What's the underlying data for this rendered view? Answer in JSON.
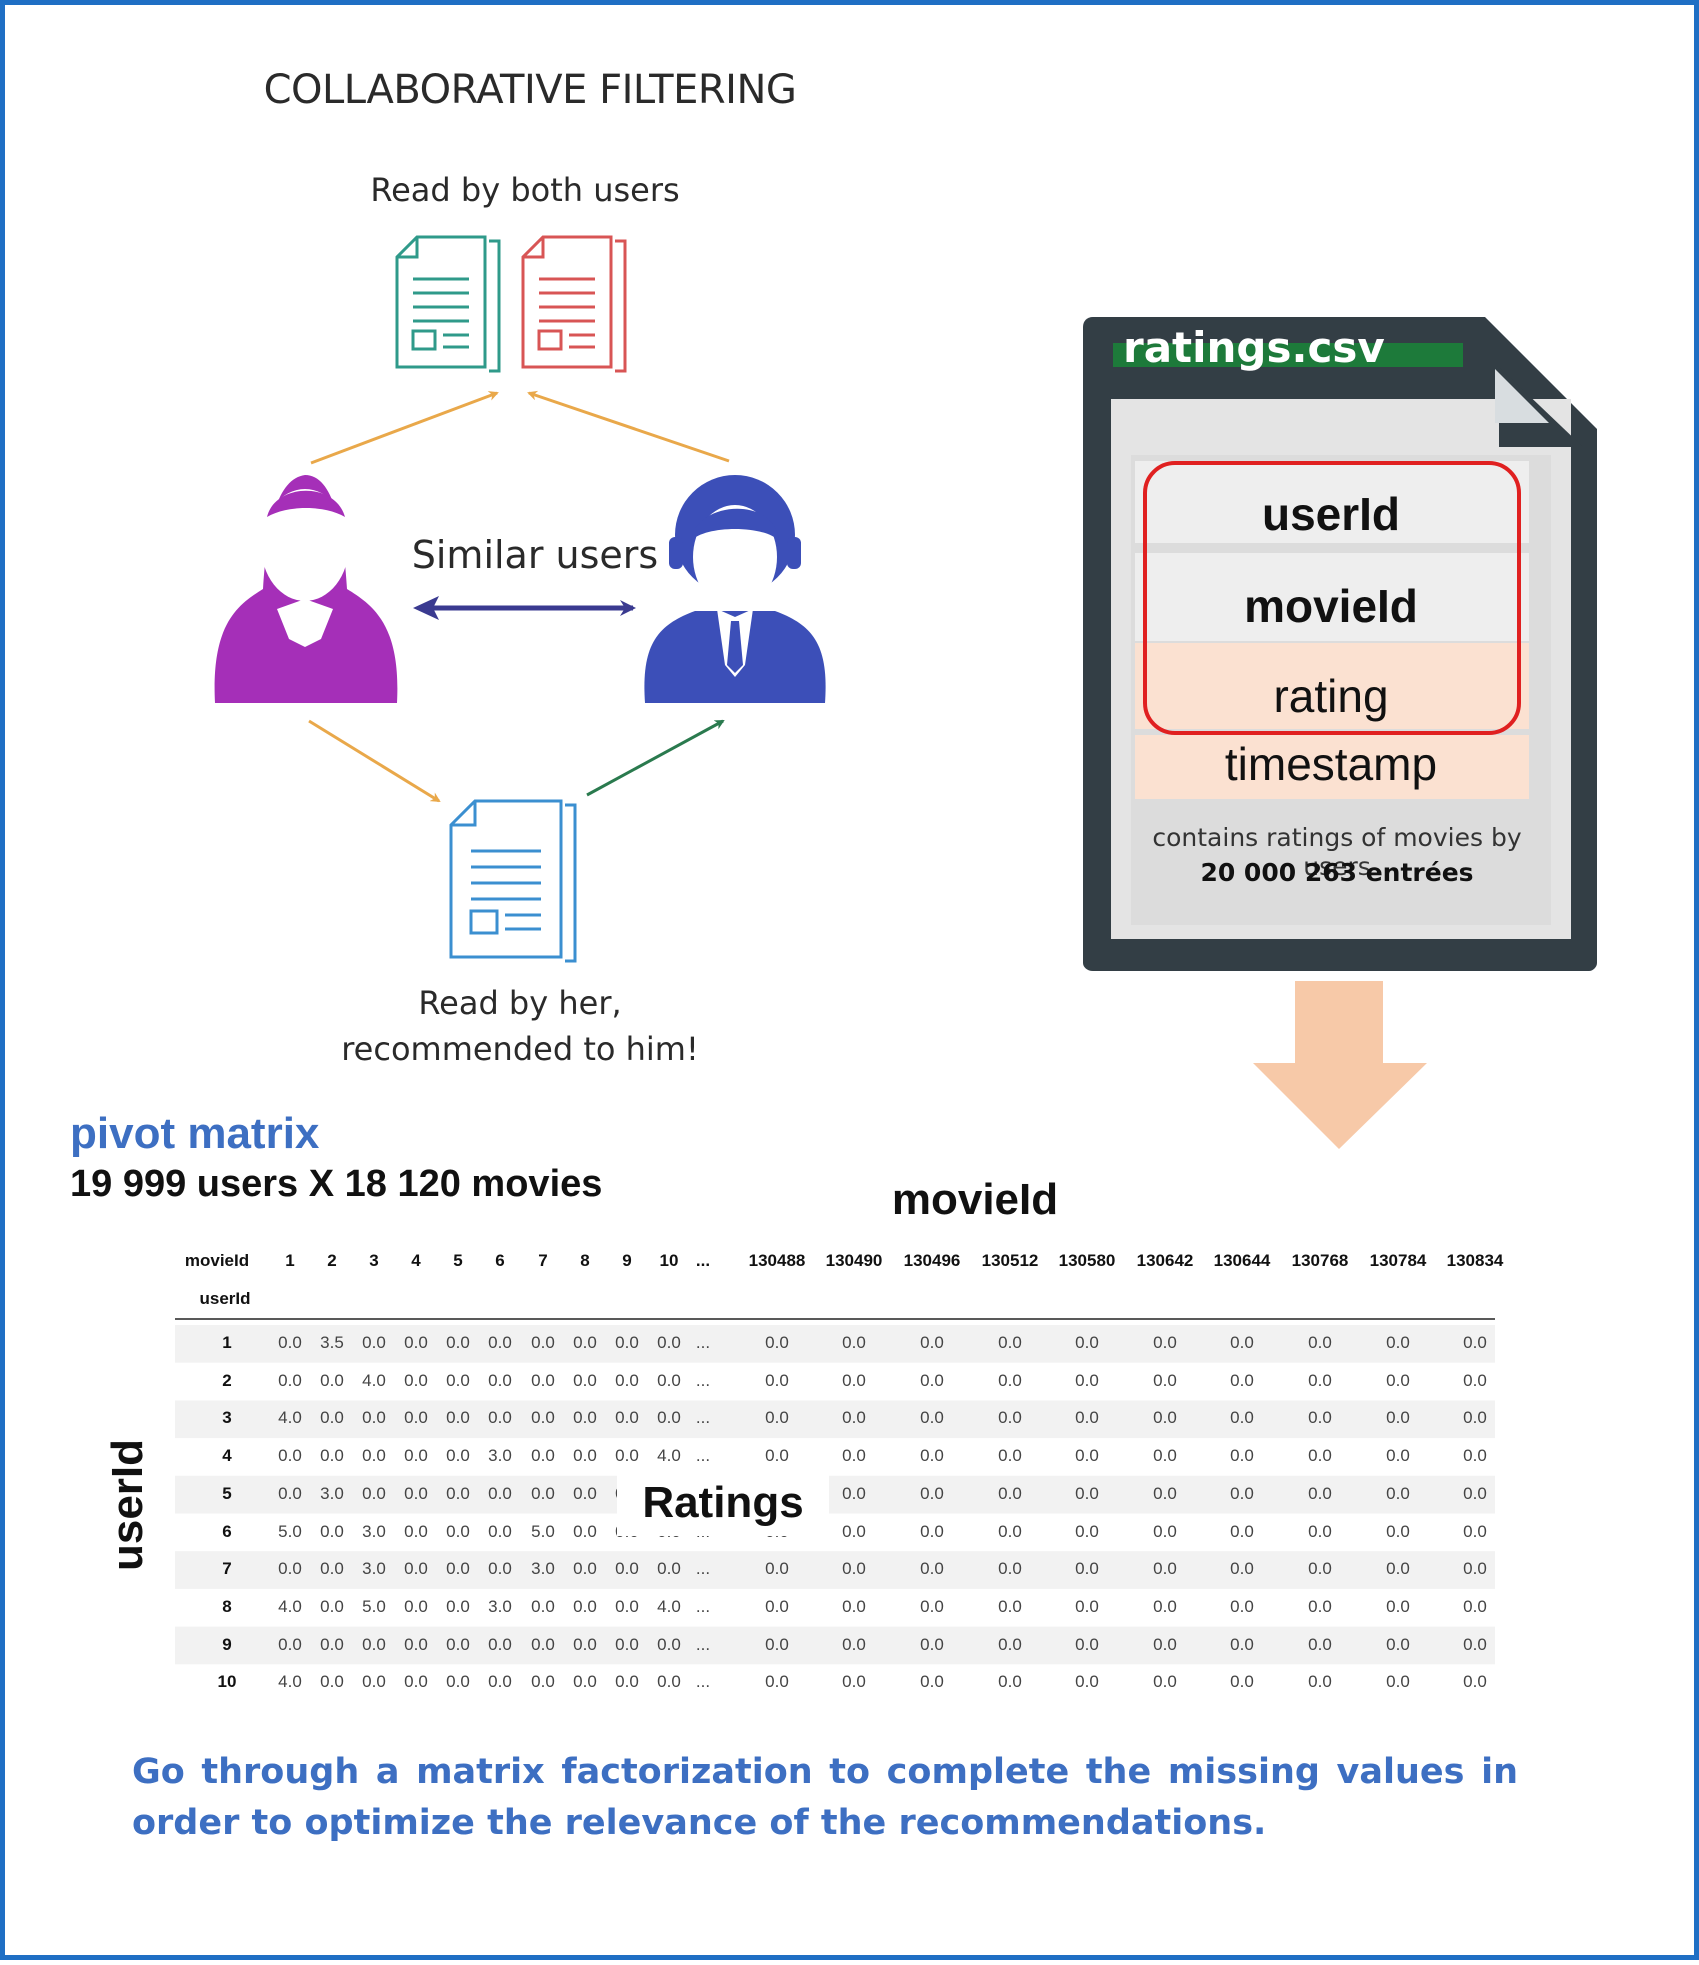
{
  "diagram": {
    "title": "COLLABORATIVE FILTERING",
    "read_by_both": "Read by both users",
    "similar_users": "Similar users",
    "read_by_her_line1": "Read by her,",
    "read_by_her_line2": "recommended to him!"
  },
  "file": {
    "name": "ratings.csv",
    "fields": [
      "userId",
      "movieId",
      "rating",
      "timestamp"
    ],
    "description": "contains ratings of movies by users",
    "count": "20 000 263 entrées"
  },
  "pivot": {
    "title": "pivot matrix",
    "dimensions": "19 999 users X 18 120 movies",
    "column_axis_label": "movieId",
    "row_axis_label": "userId",
    "overlay_label": "Ratings",
    "header_row_label": "movieId",
    "index_label": "userId",
    "columns": [
      "1",
      "2",
      "3",
      "4",
      "5",
      "6",
      "7",
      "8",
      "9",
      "10",
      "...",
      "130488",
      "130490",
      "130496",
      "130512",
      "130580",
      "130642",
      "130644",
      "130768",
      "130784",
      "130834"
    ],
    "rows": [
      {
        "id": "1",
        "values": [
          "0.0",
          "3.5",
          "0.0",
          "0.0",
          "0.0",
          "0.0",
          "0.0",
          "0.0",
          "0.0",
          "0.0",
          "...",
          "0.0",
          "0.0",
          "0.0",
          "0.0",
          "0.0",
          "0.0",
          "0.0",
          "0.0",
          "0.0",
          "0.0"
        ]
      },
      {
        "id": "2",
        "values": [
          "0.0",
          "0.0",
          "4.0",
          "0.0",
          "0.0",
          "0.0",
          "0.0",
          "0.0",
          "0.0",
          "0.0",
          "...",
          "0.0",
          "0.0",
          "0.0",
          "0.0",
          "0.0",
          "0.0",
          "0.0",
          "0.0",
          "0.0",
          "0.0"
        ]
      },
      {
        "id": "3",
        "values": [
          "4.0",
          "0.0",
          "0.0",
          "0.0",
          "0.0",
          "0.0",
          "0.0",
          "0.0",
          "0.0",
          "0.0",
          "...",
          "0.0",
          "0.0",
          "0.0",
          "0.0",
          "0.0",
          "0.0",
          "0.0",
          "0.0",
          "0.0",
          "0.0"
        ]
      },
      {
        "id": "4",
        "values": [
          "0.0",
          "0.0",
          "0.0",
          "0.0",
          "0.0",
          "3.0",
          "0.0",
          "0.0",
          "0.0",
          "4.0",
          "...",
          "0.0",
          "0.0",
          "0.0",
          "0.0",
          "0.0",
          "0.0",
          "0.0",
          "0.0",
          "0.0",
          "0.0"
        ]
      },
      {
        "id": "5",
        "values": [
          "0.0",
          "3.0",
          "0.0",
          "0.0",
          "0.0",
          "0.0",
          "0.0",
          "0.0",
          "0.0",
          "0.0",
          "...",
          "0.0",
          "0.0",
          "0.0",
          "0.0",
          "0.0",
          "0.0",
          "0.0",
          "0.0",
          "0.0",
          "0.0"
        ]
      },
      {
        "id": "6",
        "values": [
          "5.0",
          "0.0",
          "3.0",
          "0.0",
          "0.0",
          "0.0",
          "5.0",
          "0.0",
          "0.0",
          "0.0",
          "...",
          "0.0",
          "0.0",
          "0.0",
          "0.0",
          "0.0",
          "0.0",
          "0.0",
          "0.0",
          "0.0",
          "0.0"
        ]
      },
      {
        "id": "7",
        "values": [
          "0.0",
          "0.0",
          "3.0",
          "0.0",
          "0.0",
          "0.0",
          "3.0",
          "0.0",
          "0.0",
          "0.0",
          "...",
          "0.0",
          "0.0",
          "0.0",
          "0.0",
          "0.0",
          "0.0",
          "0.0",
          "0.0",
          "0.0",
          "0.0"
        ]
      },
      {
        "id": "8",
        "values": [
          "4.0",
          "0.0",
          "5.0",
          "0.0",
          "0.0",
          "3.0",
          "0.0",
          "0.0",
          "0.0",
          "4.0",
          "...",
          "0.0",
          "0.0",
          "0.0",
          "0.0",
          "0.0",
          "0.0",
          "0.0",
          "0.0",
          "0.0",
          "0.0"
        ]
      },
      {
        "id": "9",
        "values": [
          "0.0",
          "0.0",
          "0.0",
          "0.0",
          "0.0",
          "0.0",
          "0.0",
          "0.0",
          "0.0",
          "0.0",
          "...",
          "0.0",
          "0.0",
          "0.0",
          "0.0",
          "0.0",
          "0.0",
          "0.0",
          "0.0",
          "0.0",
          "0.0"
        ]
      },
      {
        "id": "10",
        "values": [
          "4.0",
          "0.0",
          "0.0",
          "0.0",
          "0.0",
          "0.0",
          "0.0",
          "0.0",
          "0.0",
          "0.0",
          "...",
          "0.0",
          "0.0",
          "0.0",
          "0.0",
          "0.0",
          "0.0",
          "0.0",
          "0.0",
          "0.0",
          "0.0"
        ]
      }
    ]
  },
  "footer": {
    "text": "Go through a matrix factorization to complete the missing values in order to optimize the relevance of the recommendations."
  },
  "colors": {
    "border": "#1f6fc4",
    "accent_blue": "#3d6fc2",
    "woman": "#a52fb8",
    "man": "#3c4fb8",
    "arrow_orange": "#e9a84a",
    "arrow_green": "#2a7a4e",
    "arrow_navy": "#3a3a90",
    "doc_teal": "#2f9a8a",
    "doc_red": "#d85555",
    "doc_blue": "#3b8fd0",
    "file_dark": "#333e45",
    "file_green": "#1d7a3a",
    "highlight_red": "#e02020",
    "peach": "#f7c9a8"
  }
}
